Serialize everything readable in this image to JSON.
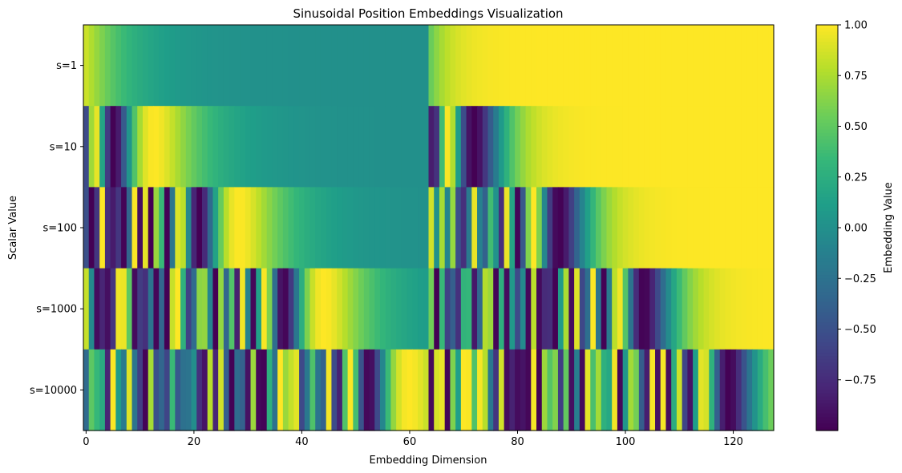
{
  "chart_data": {
    "type": "heatmap",
    "title": "Sinusoidal Position Embeddings Visualization",
    "xlabel": "Embedding Dimension",
    "ylabel": "Scalar Value",
    "rows": [
      "s=1",
      "s=10",
      "s=100",
      "s=1000",
      "s=10000"
    ],
    "scalars": [
      1,
      10,
      100,
      1000,
      10000
    ],
    "embedding_dim": 128,
    "xlim": [
      0,
      127
    ],
    "xticks": [
      "0",
      "20",
      "40",
      "60",
      "80",
      "100",
      "120"
    ],
    "xtick_values": [
      0,
      20,
      40,
      60,
      80,
      100,
      120
    ],
    "colormap": "viridis",
    "colorbar": {
      "label": "Embedding Value",
      "vmin": -1.0,
      "vmax": 1.0,
      "ticks": [
        "1.00",
        "0.75",
        "0.50",
        "0.25",
        "0.00",
        "−0.25",
        "−0.50",
        "−0.75"
      ],
      "tick_values": [
        1.0,
        0.75,
        0.5,
        0.25,
        0.0,
        -0.25,
        -0.5,
        -0.75
      ]
    }
  }
}
